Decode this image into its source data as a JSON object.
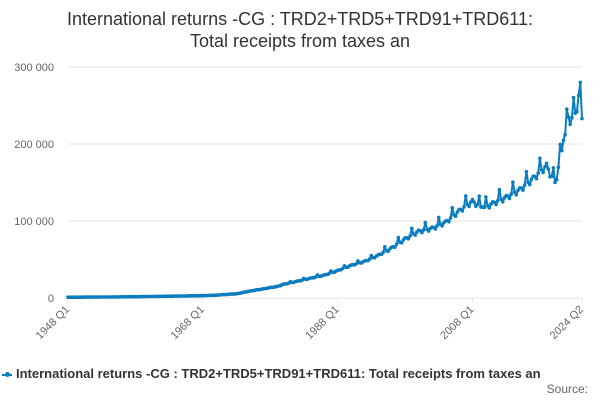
{
  "title_line1": "International returns -CG : TRD2+TRD5+TRD91+TRD611:",
  "title_line2": "Total receipts from taxes an",
  "legend_label": "International returns -CG : TRD2+TRD5+TRD91+TRD611: Total receipts from taxes an",
  "source_label": "Source:",
  "colors": {
    "series": "#0b7cc0",
    "grid": "#e6e6e6",
    "axis_text": "#666666",
    "title": "#333333"
  },
  "chart_data": {
    "type": "line",
    "title": "International returns -CG : TRD2+TRD5+TRD91+TRD611: Total receipts from taxes an",
    "xlabel": "",
    "ylabel": "",
    "x_ticks": [
      "1948 Q1",
      "1968 Q1",
      "1988 Q1",
      "2008 Q1",
      "2024 Q2"
    ],
    "y_ticks": [
      "0",
      "100 000",
      "200 000",
      "300 000"
    ],
    "ylim": [
      0,
      300000
    ],
    "xlim": [
      "1948 Q1",
      "2024 Q2"
    ],
    "grid": "horizontal",
    "legend_position": "bottom",
    "frequency": "quarterly",
    "series": [
      {
        "name": "International returns -CG : TRD2+TRD5+TRD91+TRD611: Total receipts from taxes an",
        "points": [
          [
            "1948 Q1",
            1000
          ],
          [
            "1950 Q1",
            1100
          ],
          [
            "1955 Q1",
            1400
          ],
          [
            "1960 Q1",
            1900
          ],
          [
            "1965 Q1",
            2600
          ],
          [
            "1968 Q1",
            3100
          ],
          [
            "1970 Q1",
            3700
          ],
          [
            "1973 Q1",
            5500
          ],
          [
            "1975 Q1",
            9000
          ],
          [
            "1977 Q1",
            12000
          ],
          [
            "1979 Q1",
            15000
          ],
          [
            "1980 Q1",
            18000
          ],
          [
            "1982 Q1",
            22000
          ],
          [
            "1984 Q1",
            26000
          ],
          [
            "1986 Q1",
            30000
          ],
          [
            "1988 Q1",
            36000
          ],
          [
            "1990 Q1",
            43000
          ],
          [
            "1992 Q1",
            48000
          ],
          [
            "1994 Q1",
            56000
          ],
          [
            "1996 Q1",
            66000
          ],
          [
            "1998 Q1",
            78000
          ],
          [
            "2000 Q1",
            88000
          ],
          [
            "2002 Q1",
            92000
          ],
          [
            "2004 Q1",
            100000
          ],
          [
            "2006 Q1",
            115000
          ],
          [
            "2008 Q1",
            128000
          ],
          [
            "2009 Q3",
            118000
          ],
          [
            "2011 Q1",
            125000
          ],
          [
            "2013 Q1",
            133000
          ],
          [
            "2015 Q1",
            143000
          ],
          [
            "2017 Q1",
            158000
          ],
          [
            "2019 Q1",
            175000
          ],
          [
            "2020 Q2",
            150000
          ],
          [
            "2021 Q3",
            205000
          ],
          [
            "2022 Q2",
            235000
          ],
          [
            "2023 Q2",
            240000
          ],
          [
            "2024 Q1",
            280000
          ],
          [
            "2024 Q2",
            233000
          ]
        ]
      }
    ]
  }
}
